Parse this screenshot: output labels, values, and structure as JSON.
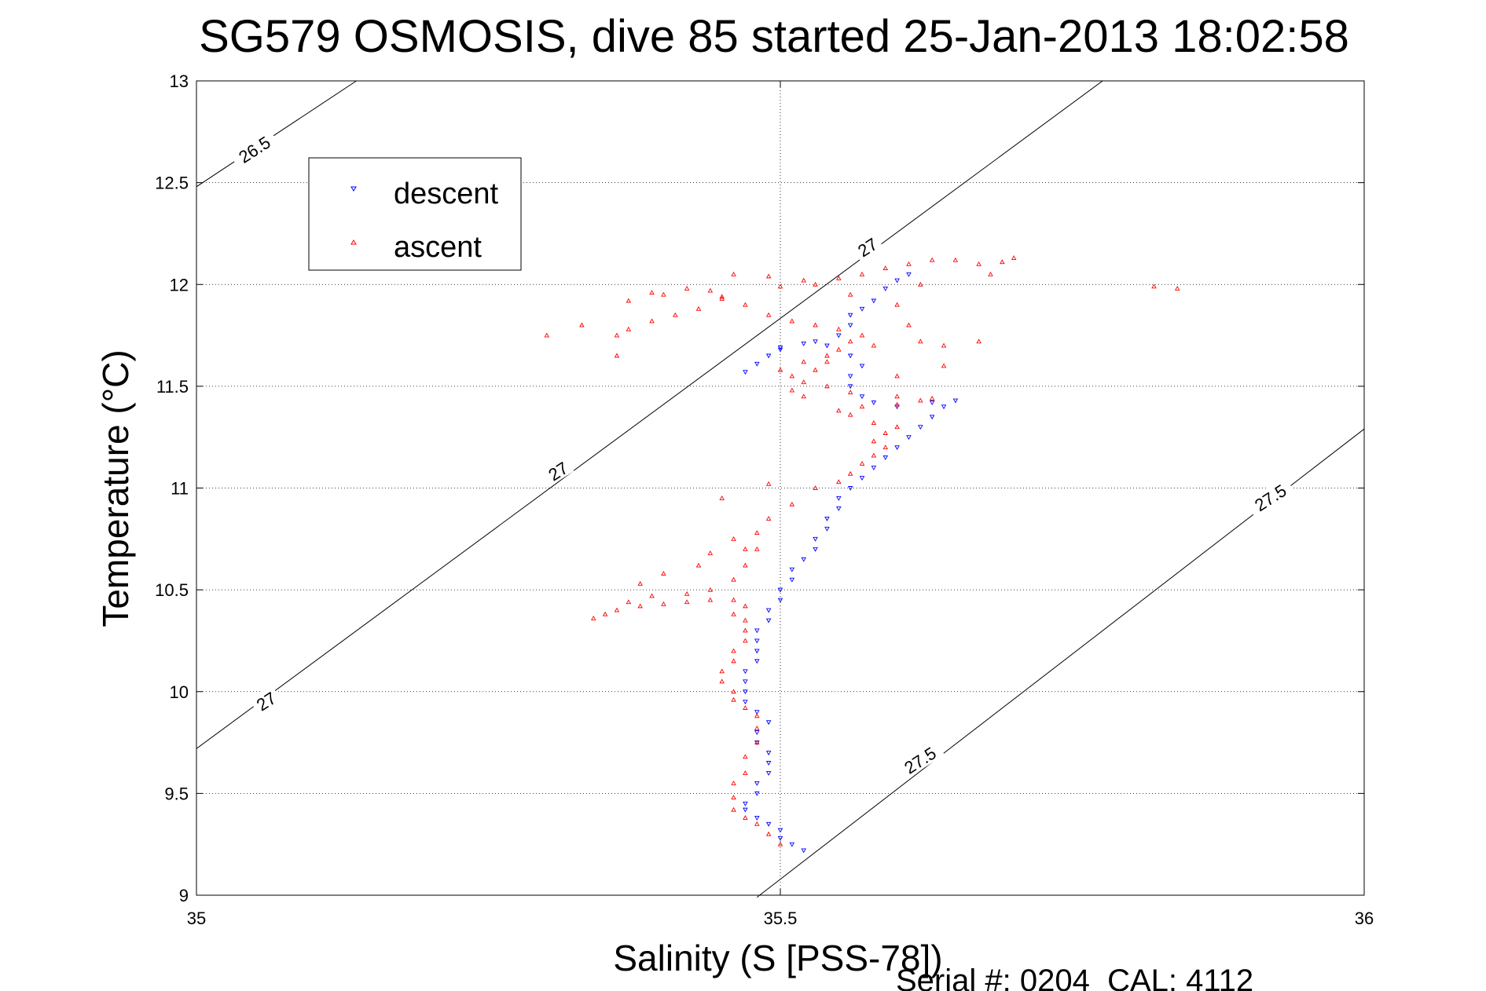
{
  "chart_data": {
    "type": "scatter",
    "title": "SG579 OSMOSIS, dive 85 started 25-Jan-2013 18:02:58",
    "xlabel": "Salinity (S [PSS-78])",
    "ylabel": "Temperature (°C)",
    "xlim": [
      35,
      36
    ],
    "ylim": [
      9,
      13
    ],
    "xticks": [
      35,
      35.5,
      36
    ],
    "xtick_labels": [
      "35",
      "35.5",
      "36"
    ],
    "yticks": [
      9,
      9.5,
      10,
      10.5,
      11,
      11.5,
      12,
      12.5,
      13
    ],
    "ytick_labels": [
      "9",
      "9.5",
      "10",
      "10.5",
      "11",
      "11.5",
      "12",
      "12.5",
      "13"
    ],
    "grid": "dotted",
    "legend_position": "top-left",
    "footer": "Serial #: 0204  CAL: 4112",
    "series": [
      {
        "name": "descent",
        "marker": "triangle-down",
        "color": "#0000ff",
        "points": [
          [
            35.52,
            9.22
          ],
          [
            35.51,
            9.25
          ],
          [
            35.5,
            9.28
          ],
          [
            35.5,
            9.32
          ],
          [
            35.49,
            9.35
          ],
          [
            35.48,
            9.38
          ],
          [
            35.47,
            9.42
          ],
          [
            35.47,
            9.45
          ],
          [
            35.48,
            9.5
          ],
          [
            35.48,
            9.55
          ],
          [
            35.49,
            9.6
          ],
          [
            35.49,
            9.65
          ],
          [
            35.49,
            9.7
          ],
          [
            35.48,
            9.75
          ],
          [
            35.48,
            9.8
          ],
          [
            35.49,
            9.85
          ],
          [
            35.48,
            9.9
          ],
          [
            35.47,
            9.95
          ],
          [
            35.47,
            10.0
          ],
          [
            35.47,
            10.05
          ],
          [
            35.47,
            10.1
          ],
          [
            35.48,
            10.15
          ],
          [
            35.48,
            10.2
          ],
          [
            35.48,
            10.25
          ],
          [
            35.48,
            10.3
          ],
          [
            35.49,
            10.35
          ],
          [
            35.49,
            10.4
          ],
          [
            35.5,
            10.45
          ],
          [
            35.5,
            10.5
          ],
          [
            35.51,
            10.55
          ],
          [
            35.51,
            10.6
          ],
          [
            35.52,
            10.65
          ],
          [
            35.53,
            10.7
          ],
          [
            35.53,
            10.75
          ],
          [
            35.54,
            10.8
          ],
          [
            35.54,
            10.85
          ],
          [
            35.55,
            10.9
          ],
          [
            35.55,
            10.95
          ],
          [
            35.56,
            11.0
          ],
          [
            35.57,
            11.05
          ],
          [
            35.58,
            11.1
          ],
          [
            35.59,
            11.15
          ],
          [
            35.6,
            11.2
          ],
          [
            35.61,
            11.25
          ],
          [
            35.62,
            11.3
          ],
          [
            35.63,
            11.35
          ],
          [
            35.64,
            11.4
          ],
          [
            35.65,
            11.43
          ],
          [
            35.63,
            11.42
          ],
          [
            35.6,
            11.4
          ],
          [
            35.58,
            11.42
          ],
          [
            35.57,
            11.45
          ],
          [
            35.56,
            11.5
          ],
          [
            35.56,
            11.55
          ],
          [
            35.57,
            11.6
          ],
          [
            35.56,
            11.65
          ],
          [
            35.54,
            11.7
          ],
          [
            35.52,
            11.71
          ],
          [
            35.5,
            11.68
          ],
          [
            35.49,
            11.65
          ],
          [
            35.48,
            11.61
          ],
          [
            35.47,
            11.57
          ],
          [
            35.5,
            11.69
          ],
          [
            35.53,
            11.72
          ],
          [
            35.55,
            11.75
          ],
          [
            35.56,
            11.8
          ],
          [
            35.56,
            11.85
          ],
          [
            35.57,
            11.88
          ],
          [
            35.58,
            11.92
          ],
          [
            35.59,
            11.98
          ],
          [
            35.6,
            12.02
          ],
          [
            35.61,
            12.05
          ]
        ]
      },
      {
        "name": "ascent",
        "marker": "triangle-up",
        "color": "#ff0000",
        "points": [
          [
            35.5,
            9.25
          ],
          [
            35.49,
            9.3
          ],
          [
            35.48,
            9.35
          ],
          [
            35.47,
            9.38
          ],
          [
            35.46,
            9.42
          ],
          [
            35.46,
            9.48
          ],
          [
            35.46,
            9.55
          ],
          [
            35.47,
            9.6
          ],
          [
            35.47,
            9.68
          ],
          [
            35.48,
            9.75
          ],
          [
            35.48,
            9.82
          ],
          [
            35.48,
            9.88
          ],
          [
            35.47,
            9.92
          ],
          [
            35.46,
            9.96
          ],
          [
            35.46,
            10.0
          ],
          [
            35.45,
            10.05
          ],
          [
            35.45,
            10.1
          ],
          [
            35.46,
            10.15
          ],
          [
            35.46,
            10.2
          ],
          [
            35.47,
            10.25
          ],
          [
            35.47,
            10.3
          ],
          [
            35.47,
            10.35
          ],
          [
            35.46,
            10.38
          ],
          [
            35.47,
            10.42
          ],
          [
            35.46,
            10.45
          ],
          [
            35.44,
            10.45
          ],
          [
            35.42,
            10.44
          ],
          [
            35.4,
            10.43
          ],
          [
            35.38,
            10.42
          ],
          [
            35.36,
            10.4
          ],
          [
            35.35,
            10.38
          ],
          [
            35.34,
            10.36
          ],
          [
            35.37,
            10.44
          ],
          [
            35.39,
            10.47
          ],
          [
            35.42,
            10.48
          ],
          [
            35.44,
            10.5
          ],
          [
            35.46,
            10.55
          ],
          [
            35.47,
            10.62
          ],
          [
            35.48,
            10.7
          ],
          [
            35.48,
            10.78
          ],
          [
            35.49,
            10.85
          ],
          [
            35.51,
            10.92
          ],
          [
            35.53,
            11.0
          ],
          [
            35.55,
            11.03
          ],
          [
            35.56,
            11.07
          ],
          [
            35.57,
            11.12
          ],
          [
            35.58,
            11.16
          ],
          [
            35.59,
            11.2
          ],
          [
            35.58,
            11.23
          ],
          [
            35.59,
            11.27
          ],
          [
            35.6,
            11.3
          ],
          [
            35.58,
            11.32
          ],
          [
            35.56,
            11.36
          ],
          [
            35.55,
            11.38
          ],
          [
            35.57,
            11.4
          ],
          [
            35.6,
            11.41
          ],
          [
            35.62,
            11.43
          ],
          [
            35.63,
            11.44
          ],
          [
            35.6,
            11.45
          ],
          [
            35.56,
            11.47
          ],
          [
            35.54,
            11.5
          ],
          [
            35.52,
            11.52
          ],
          [
            35.51,
            11.55
          ],
          [
            35.5,
            11.58
          ],
          [
            35.52,
            11.62
          ],
          [
            35.54,
            11.65
          ],
          [
            35.55,
            11.68
          ],
          [
            35.56,
            11.72
          ],
          [
            35.58,
            11.7
          ],
          [
            35.57,
            11.75
          ],
          [
            35.55,
            11.78
          ],
          [
            35.53,
            11.8
          ],
          [
            35.51,
            11.82
          ],
          [
            35.49,
            11.85
          ],
          [
            35.47,
            11.9
          ],
          [
            35.45,
            11.93
          ],
          [
            35.43,
            11.88
          ],
          [
            35.41,
            11.85
          ],
          [
            35.39,
            11.82
          ],
          [
            35.37,
            11.78
          ],
          [
            35.36,
            11.75
          ],
          [
            35.4,
            11.95
          ],
          [
            35.44,
            11.97
          ],
          [
            35.5,
            11.99
          ],
          [
            35.52,
            12.02
          ],
          [
            35.55,
            12.03
          ],
          [
            35.57,
            12.05
          ],
          [
            35.59,
            12.08
          ],
          [
            35.61,
            12.1
          ],
          [
            35.63,
            12.12
          ],
          [
            35.65,
            12.12
          ],
          [
            35.67,
            12.1
          ],
          [
            35.69,
            12.11
          ],
          [
            35.7,
            12.13
          ],
          [
            35.68,
            12.05
          ],
          [
            35.62,
            12.0
          ],
          [
            35.6,
            11.9
          ],
          [
            35.61,
            11.8
          ],
          [
            35.62,
            11.72
          ],
          [
            35.64,
            11.7
          ],
          [
            35.67,
            11.72
          ],
          [
            35.64,
            11.6
          ],
          [
            35.46,
            12.05
          ],
          [
            35.49,
            12.04
          ],
          [
            35.53,
            12.0
          ],
          [
            35.56,
            11.95
          ],
          [
            35.33,
            11.8
          ],
          [
            35.3,
            11.75
          ],
          [
            35.37,
            11.92
          ],
          [
            35.39,
            11.96
          ],
          [
            35.42,
            11.98
          ],
          [
            35.45,
            11.94
          ],
          [
            35.36,
            11.65
          ],
          [
            35.6,
            11.55
          ],
          [
            35.51,
            11.48
          ],
          [
            35.52,
            11.45
          ],
          [
            35.53,
            11.58
          ],
          [
            35.54,
            11.62
          ],
          [
            35.82,
            11.99
          ],
          [
            35.84,
            11.98
          ],
          [
            35.47,
            10.7
          ],
          [
            35.46,
            10.75
          ],
          [
            35.44,
            10.68
          ],
          [
            35.43,
            10.62
          ],
          [
            35.4,
            10.58
          ],
          [
            35.38,
            10.53
          ],
          [
            35.49,
            11.02
          ],
          [
            35.45,
            10.95
          ]
        ]
      }
    ],
    "density_contours": [
      {
        "label": "26.5",
        "points": [
          [
            35.0,
            12.48
          ],
          [
            35.137,
            13.0
          ]
        ]
      },
      {
        "label": "27",
        "points": [
          [
            35.0,
            9.72
          ],
          [
            35.776,
            13.0
          ]
        ]
      },
      {
        "label": "27.5",
        "points": [
          [
            35.48,
            8.99
          ],
          [
            36.0,
            11.29
          ]
        ]
      }
    ],
    "contour_labels": [
      {
        "text": "26.5",
        "x": 35.05,
        "y": 12.66,
        "angle": -33
      },
      {
        "text": "27",
        "x": 35.06,
        "y": 9.95,
        "angle": -33
      },
      {
        "text": "27",
        "x": 35.31,
        "y": 11.08,
        "angle": -33
      },
      {
        "text": "27",
        "x": 35.575,
        "y": 12.18,
        "angle": -33
      },
      {
        "text": "27.5",
        "x": 35.62,
        "y": 9.66,
        "angle": -33
      },
      {
        "text": "27.5",
        "x": 35.92,
        "y": 10.95,
        "angle": -33
      }
    ]
  }
}
